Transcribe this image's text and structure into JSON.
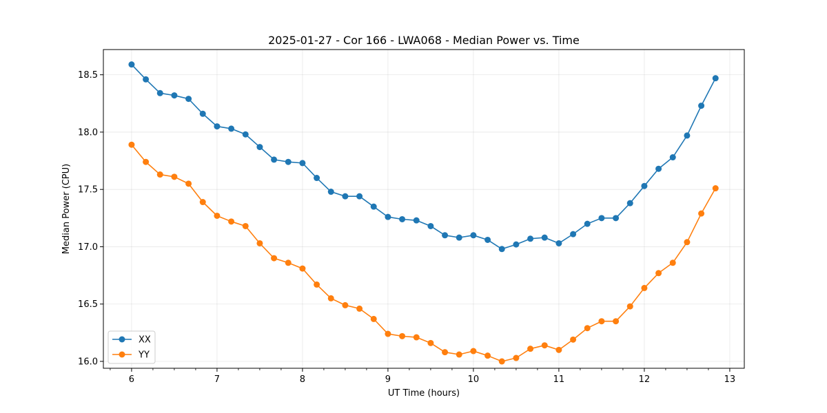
{
  "chart_data": {
    "type": "line",
    "title": "2025-01-27 - Cor 166 - LWA068 - Median Power vs. Time",
    "xlabel": "UT Time (hours)",
    "ylabel": "Median Power (CPU)",
    "xlim": [
      5.67,
      13.17
    ],
    "ylim": [
      15.94,
      18.72
    ],
    "xticks": [
      6,
      7,
      8,
      9,
      10,
      11,
      12,
      13
    ],
    "xtick_labels": [
      "6",
      "7",
      "8",
      "9",
      "10",
      "11",
      "12",
      "13"
    ],
    "x_minor_step": 0.25,
    "yticks": [
      16.0,
      16.5,
      17.0,
      17.5,
      18.0,
      18.5
    ],
    "ytick_labels": [
      "16.0",
      "16.5",
      "17.0",
      "17.5",
      "18.0",
      "18.5"
    ],
    "grid": true,
    "legend_position": "lower-left",
    "x": [
      6.0,
      6.1667,
      6.3333,
      6.5,
      6.6667,
      6.8333,
      7.0,
      7.1667,
      7.3333,
      7.5,
      7.6667,
      7.8333,
      8.0,
      8.1667,
      8.3333,
      8.5,
      8.6667,
      8.8333,
      9.0,
      9.1667,
      9.3333,
      9.5,
      9.6667,
      9.8333,
      10.0,
      10.1667,
      10.3333,
      10.5,
      10.6667,
      10.8333,
      11.0,
      11.1667,
      11.3333,
      11.5,
      11.6667,
      11.8333,
      12.0,
      12.1667,
      12.3333,
      12.5,
      12.6667,
      12.8333
    ],
    "series": [
      {
        "name": "XX",
        "color": "#1f77b4",
        "values": [
          18.59,
          18.46,
          18.34,
          18.32,
          18.29,
          18.16,
          18.05,
          18.03,
          17.98,
          17.87,
          17.76,
          17.74,
          17.73,
          17.6,
          17.48,
          17.44,
          17.44,
          17.35,
          17.26,
          17.24,
          17.23,
          17.18,
          17.1,
          17.08,
          17.1,
          17.06,
          16.98,
          17.02,
          17.07,
          17.08,
          17.03,
          17.11,
          17.2,
          17.25,
          17.25,
          17.38,
          17.53,
          17.68,
          17.78,
          17.97,
          18.23,
          18.47
        ]
      },
      {
        "name": "YY",
        "color": "#ff7f0e",
        "values": [
          17.89,
          17.74,
          17.63,
          17.61,
          17.55,
          17.39,
          17.27,
          17.22,
          17.18,
          17.03,
          16.9,
          16.86,
          16.81,
          16.67,
          16.55,
          16.49,
          16.46,
          16.37,
          16.24,
          16.22,
          16.21,
          16.16,
          16.08,
          16.06,
          16.09,
          16.05,
          16.0,
          16.03,
          16.11,
          16.14,
          16.1,
          16.19,
          16.29,
          16.35,
          16.35,
          16.48,
          16.64,
          16.77,
          16.86,
          17.04,
          17.29,
          17.51
        ]
      }
    ]
  }
}
